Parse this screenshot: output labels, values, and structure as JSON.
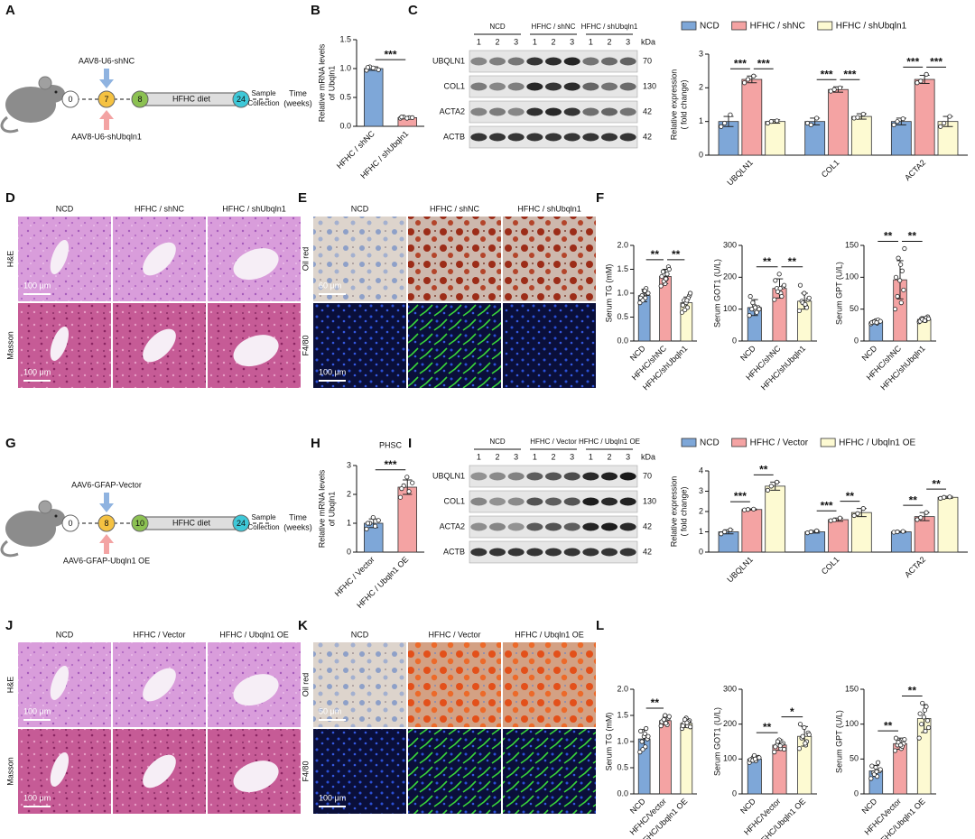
{
  "panels": [
    "A",
    "B",
    "C",
    "D",
    "E",
    "F",
    "G",
    "H",
    "I",
    "J",
    "K",
    "L"
  ],
  "diagrams": [
    {
      "top_label": "AAV8-U6-shNC",
      "bottom_label": "AAV8-U6-shUbqln1",
      "timepoints": [
        0,
        7,
        8,
        24
      ],
      "bar_label": "HFHC diet",
      "end_label": [
        "Sample",
        "Collection"
      ],
      "axis_label": [
        "Time",
        "(weeks)"
      ]
    },
    {
      "top_label": "AAV6-GFAP-Vector",
      "bottom_label": "AAV6-GFAP-Ubqln1 OE",
      "timepoints": [
        0,
        8,
        10,
        24
      ],
      "bar_label": "HFHC diet",
      "end_label": [
        "Sample",
        "Collection"
      ],
      "axis_label": [
        "Time",
        "(weeks)"
      ]
    }
  ],
  "blots": [
    {
      "groups": [
        "NCD",
        "HFHC / shNC",
        "HFHC / shUbqln1"
      ],
      "lanes": [
        "1",
        "2",
        "3"
      ],
      "unit": "kDa",
      "rows": [
        {
          "label": "UBQLN1",
          "kda": 70
        },
        {
          "label": "COL1",
          "kda": 130
        },
        {
          "label": "ACTA2",
          "kda": 42
        },
        {
          "label": "ACTB",
          "kda": 42
        }
      ]
    },
    {
      "groups": [
        "NCD",
        "HFHC / Vector",
        "HFHC / Ubqln1 OE"
      ],
      "lanes": [
        "1",
        "2",
        "3"
      ],
      "unit": "kDa",
      "rows": [
        {
          "label": "UBQLN1",
          "kda": 70
        },
        {
          "label": "COL1",
          "kda": 130
        },
        {
          "label": "ACTA2",
          "kda": 42
        },
        {
          "label": "ACTB",
          "kda": 42
        }
      ]
    }
  ],
  "images": [
    {
      "columns": [
        "NCD",
        "HFHC / shNC",
        "HFHC / shUbqln1"
      ],
      "rows": [
        "H&E",
        "Masson"
      ],
      "scale_bars": [
        "100 μm",
        "100 μm"
      ]
    },
    {
      "columns": [
        "NCD",
        "HFHC / shNC",
        "HFHC / shUbqln1"
      ],
      "rows": [
        "Oil red",
        "F4/80"
      ],
      "scale_bars": [
        "60 μm",
        "100 μm"
      ]
    },
    {
      "columns": [
        "NCD",
        "HFHC / Vector",
        "HFHC / Ubqln1 OE"
      ],
      "rows": [
        "H&E",
        "Masson"
      ],
      "scale_bars": [
        "100 μm",
        "100 μm"
      ]
    },
    {
      "columns": [
        "NCD",
        "HFHC / Vector",
        "HFHC / Ubqln1 OE"
      ],
      "rows": [
        "Oil red",
        "F4/80"
      ],
      "scale_bars": [
        "50 μm",
        "100 μm"
      ]
    }
  ],
  "chart_data": [
    {
      "type": "bar",
      "ylabel": [
        "Relative mRNA levels",
        "of Ubqln1"
      ],
      "categories": [
        "HFHC / shNC",
        "HFHC / shUbqln1"
      ],
      "colors": [
        "#7ea7d8",
        "#f4a3a3"
      ],
      "values": [
        1.0,
        0.15
      ],
      "errors": [
        0.03,
        0.01
      ],
      "points": [
        [
          0.97,
          1.0,
          1.03,
          0.98,
          1.01,
          1.02
        ],
        [
          0.14,
          0.15,
          0.16,
          0.15,
          0.14,
          0.16
        ]
      ],
      "ylim": [
        0,
        1.5
      ],
      "yticks": [
        {
          "value": 0,
          "label": "0.0"
        },
        {
          "value": 0.5,
          "label": "0.5"
        },
        {
          "value": 1,
          "label": "1.0"
        },
        {
          "value": 1.5,
          "label": "1.5"
        }
      ],
      "annotations": [
        {
          "text": "***",
          "groups": [
            "HFHC / shNC",
            "HFHC / shUbqln1"
          ]
        }
      ]
    },
    {
      "type": "bar",
      "ylabel": [
        "Relative expression",
        "( fold change)"
      ],
      "categories": [
        "UBQLN1",
        "COL1",
        "ACTA2"
      ],
      "series": [
        {
          "name": "NCD",
          "color": "#7ea7d8",
          "values": [
            1,
            1,
            1
          ],
          "errors": [
            0.15,
            0.1,
            0.1
          ],
          "points": [
            [
              0.85,
              1.2,
              0.95
            ],
            [
              0.95,
              1.1,
              0.9
            ],
            [
              0.9,
              1.08,
              1.0
            ]
          ]
        },
        {
          "name": "HFHC / shNC",
          "color": "#f4a3a3",
          "values": [
            2.25,
            1.95,
            2.25
          ],
          "errors": [
            0.1,
            0.08,
            0.12
          ],
          "points": [
            [
              2.15,
              2.35,
              2.25
            ],
            [
              1.9,
              2.0,
              1.95
            ],
            [
              2.15,
              2.4,
              2.2
            ]
          ]
        },
        {
          "name": "HFHC / shUbqln1",
          "color": "#fdfad2",
          "values": [
            1,
            1.15,
            1
          ],
          "errors": [
            0.05,
            0.08,
            0.15
          ],
          "points": [
            [
              0.95,
              1.02,
              1.0
            ],
            [
              1.1,
              1.22,
              1.12
            ],
            [
              0.85,
              1.15,
              0.95
            ]
          ]
        }
      ],
      "ylim": [
        0,
        3
      ],
      "yticks": [
        0,
        1,
        2,
        3
      ],
      "annotations": [
        {
          "text": "***",
          "category": "UBQLN1",
          "series": [
            "NCD",
            "HFHC / shNC"
          ]
        },
        {
          "text": "***",
          "category": "UBQLN1",
          "series": [
            "HFHC / shNC",
            "HFHC / shUbqln1"
          ]
        },
        {
          "text": "***",
          "category": "COL1",
          "series": [
            "NCD",
            "HFHC / shNC"
          ]
        },
        {
          "text": "***",
          "category": "COL1",
          "series": [
            "HFHC / shNC",
            "HFHC / shUbqln1"
          ]
        },
        {
          "text": "***",
          "category": "ACTA2",
          "series": [
            "NCD",
            "HFHC / shNC"
          ]
        },
        {
          "text": "***",
          "category": "ACTA2",
          "series": [
            "HFHC / shNC",
            "HFHC / shUbqln1"
          ]
        }
      ]
    },
    {
      "type": "bar",
      "ylabel": [
        "Serum TG (mM)"
      ],
      "categories": [
        "NCD",
        "HFHC/shNC",
        "HFHC/shUbqln1"
      ],
      "colors": [
        "#7ea7d8",
        "#f4a3a3",
        "#fdfad2"
      ],
      "values": [
        0.95,
        1.35,
        0.8
      ],
      "errors": [
        0.13,
        0.15,
        0.12
      ],
      "points": [
        [
          0.8,
          0.9,
          0.95,
          1.0,
          1.05,
          0.9,
          1.1,
          0.85,
          1.0,
          1.05
        ],
        [
          1.15,
          1.3,
          1.45,
          1.55,
          1.2,
          1.35,
          1.4,
          1.25,
          1.5,
          1.3
        ],
        [
          0.6,
          0.7,
          0.85,
          0.95,
          0.8,
          0.75,
          0.9,
          0.65,
          1.0,
          0.85
        ]
      ],
      "ylim": [
        0,
        2
      ],
      "yticks": [
        {
          "value": 0,
          "label": "0.0"
        },
        {
          "value": 0.5,
          "label": "0.5"
        },
        {
          "value": 1,
          "label": "1.0"
        },
        {
          "value": 1.5,
          "label": "1.5"
        },
        {
          "value": 2,
          "label": "2.0"
        }
      ],
      "annotations": [
        {
          "text": "**",
          "groups": [
            "NCD",
            "HFHC/shNC"
          ]
        },
        {
          "text": "**",
          "groups": [
            "HFHC/shNC",
            "HFHC/shUbqln1"
          ]
        }
      ]
    },
    {
      "type": "bar",
      "ylabel": [
        "Serum GOT1 (U/L)"
      ],
      "categories": [
        "NCD",
        "HFHC/shNC",
        "HFHC/shUbqln1"
      ],
      "colors": [
        "#7ea7d8",
        "#f4a3a3",
        "#fdfad2"
      ],
      "values": [
        105,
        165,
        125
      ],
      "errors": [
        25,
        30,
        25
      ],
      "points": [
        [
          80,
          95,
          100,
          105,
          110,
          140,
          90,
          120,
          100,
          105
        ],
        [
          130,
          150,
          165,
          170,
          210,
          190,
          140,
          155,
          175,
          165
        ],
        [
          95,
          110,
          125,
          130,
          150,
          175,
          105,
          120,
          135,
          115
        ]
      ],
      "ylim": [
        0,
        300
      ],
      "yticks": [
        0,
        100,
        200,
        300
      ],
      "annotations": [
        {
          "text": "**",
          "groups": [
            "NCD",
            "HFHC/shNC"
          ]
        },
        {
          "text": "**",
          "groups": [
            "HFHC/shNC",
            "HFHC/shUbqln1"
          ]
        }
      ]
    },
    {
      "type": "bar",
      "ylabel": [
        "Serum GPT (U/L)"
      ],
      "categories": [
        "NCD",
        "HFHC/shNC",
        "HFHC/shUbqln1"
      ],
      "colors": [
        "#7ea7d8",
        "#f4a3a3",
        "#fdfad2"
      ],
      "values": [
        30,
        96,
        34
      ],
      "errors": [
        3,
        30,
        4
      ],
      "points": [
        [
          27,
          28,
          30,
          31,
          32,
          29,
          33,
          30,
          31,
          29
        ],
        [
          50,
          60,
          70,
          80,
          95,
          100,
          110,
          130,
          145,
          120
        ],
        [
          30,
          32,
          35,
          38,
          33,
          31,
          36,
          34,
          35,
          32
        ]
      ],
      "ylim": [
        0,
        150
      ],
      "yticks": [
        0,
        50,
        100,
        150
      ],
      "annotations": [
        {
          "text": "**",
          "groups": [
            "NCD",
            "HFHC/shNC"
          ]
        },
        {
          "text": "**",
          "groups": [
            "HFHC/shNC",
            "HFHC/shUbqln1"
          ]
        }
      ]
    },
    {
      "type": "bar",
      "title": "PHSC",
      "ylabel": [
        "Relative mRNA levels",
        "of Ubqln1"
      ],
      "categories": [
        "HFHC / Vector",
        "HFHC / Ubqln1 OE"
      ],
      "colors": [
        "#7ea7d8",
        "#f4a3a3"
      ],
      "values": [
        1.0,
        2.25
      ],
      "errors": [
        0.15,
        0.25
      ],
      "points": [
        [
          0.8,
          0.9,
          1.0,
          1.1,
          1.2,
          1.0
        ],
        [
          1.9,
          2.1,
          2.3,
          2.4,
          2.6,
          2.2
        ]
      ],
      "ylim": [
        0,
        3
      ],
      "yticks": [
        0,
        1,
        2,
        3
      ],
      "annotations": [
        {
          "text": "***",
          "groups": [
            "HFHC / Vector",
            "HFHC / Ubqln1 OE"
          ]
        }
      ]
    },
    {
      "type": "bar",
      "ylabel": [
        "Relative expression",
        "( fold change)"
      ],
      "categories": [
        "UBQLN1",
        "COL1",
        "ACTA2"
      ],
      "series": [
        {
          "name": "NCD",
          "color": "#7ea7d8",
          "values": [
            1,
            1,
            1
          ],
          "errors": [
            0.1,
            0.06,
            0.03
          ],
          "points": [
            [
              0.9,
              1.1,
              1.0
            ],
            [
              0.95,
              1.05,
              1.0
            ],
            [
              0.98,
              1.02,
              1.0
            ]
          ]
        },
        {
          "name": "HFHC / Vector",
          "color": "#f4a3a3",
          "values": [
            2.1,
            1.6,
            1.75
          ],
          "errors": [
            0.03,
            0.08,
            0.2
          ],
          "points": [
            [
              2.08,
              2.12,
              2.1
            ],
            [
              1.55,
              1.68,
              1.58
            ],
            [
              1.6,
              1.95,
              1.7
            ]
          ]
        },
        {
          "name": "HFHC / Ubqln1 OE",
          "color": "#fdfad2",
          "values": [
            3.25,
            1.95,
            2.7
          ],
          "errors": [
            0.2,
            0.2,
            0.05
          ],
          "points": [
            [
              3.05,
              3.45,
              3.25
            ],
            [
              1.8,
              2.15,
              1.9
            ],
            [
              2.65,
              2.72,
              2.7
            ]
          ]
        }
      ],
      "ylim": [
        0,
        4
      ],
      "yticks": [
        0,
        1,
        2,
        3,
        4
      ],
      "annotations": [
        {
          "text": "***",
          "category": "UBQLN1",
          "series": [
            "NCD",
            "HFHC / Vector"
          ]
        },
        {
          "text": "**",
          "category": "UBQLN1",
          "series": [
            "HFHC / Vector",
            "HFHC / Ubqln1 OE"
          ]
        },
        {
          "text": "***",
          "category": "COL1",
          "series": [
            "NCD",
            "HFHC / Vector"
          ]
        },
        {
          "text": "**",
          "category": "COL1",
          "series": [
            "HFHC / Vector",
            "HFHC / Ubqln1 OE"
          ]
        },
        {
          "text": "**",
          "category": "ACTA2",
          "series": [
            "NCD",
            "HFHC / Vector"
          ]
        },
        {
          "text": "**",
          "category": "ACTA2",
          "series": [
            "HFHC / Vector",
            "HFHC / Ubqln1 OE"
          ]
        }
      ]
    },
    {
      "type": "bar",
      "ylabel": [
        "Serum TG (mM)"
      ],
      "categories": [
        "NCD",
        "HFHC/Vector",
        "HFHC/Ubqln1 OE"
      ],
      "colors": [
        "#7ea7d8",
        "#f4a3a3",
        "#fdfad2"
      ],
      "values": [
        1.05,
        1.4,
        1.35
      ],
      "errors": [
        0.18,
        0.08,
        0.08
      ],
      "points": [
        [
          0.8,
          0.9,
          1.0,
          1.05,
          1.1,
          1.2,
          1.25,
          0.85,
          1.1,
          1.15
        ],
        [
          1.3,
          1.35,
          1.4,
          1.45,
          1.5,
          1.38,
          1.32,
          1.42,
          1.48,
          1.35
        ],
        [
          1.25,
          1.3,
          1.35,
          1.4,
          1.45,
          1.3,
          1.38,
          1.42,
          1.28,
          1.36
        ]
      ],
      "ylim": [
        0,
        2
      ],
      "yticks": [
        {
          "value": 0,
          "label": "0.0"
        },
        {
          "value": 0.5,
          "label": "0.5"
        },
        {
          "value": 1,
          "label": "1.0"
        },
        {
          "value": 1.5,
          "label": "1.5"
        },
        {
          "value": 2,
          "label": "2.0"
        }
      ],
      "annotations": [
        {
          "text": "**",
          "groups": [
            "NCD",
            "HFHC/Vector"
          ]
        }
      ]
    },
    {
      "type": "bar",
      "ylabel": [
        "Serum GOT1 (U/L)"
      ],
      "categories": [
        "NCD",
        "HFHC/Vector",
        "HFHC/Ubqln1 OE"
      ],
      "colors": [
        "#7ea7d8",
        "#f4a3a3",
        "#fdfad2"
      ],
      "values": [
        100,
        140,
        165
      ],
      "errors": [
        8,
        15,
        28
      ],
      "points": [
        [
          90,
          95,
          100,
          105,
          110,
          98,
          102,
          96,
          104,
          100
        ],
        [
          120,
          130,
          140,
          145,
          155,
          135,
          142,
          150,
          128,
          138
        ],
        [
          130,
          140,
          160,
          175,
          190,
          200,
          150,
          165,
          170,
          145
        ]
      ],
      "ylim": [
        0,
        300
      ],
      "yticks": [
        0,
        100,
        200,
        300
      ],
      "annotations": [
        {
          "text": "**",
          "groups": [
            "NCD",
            "HFHC/Vector"
          ]
        },
        {
          "text": "*",
          "groups": [
            "HFHC/Vector",
            "HFHC/Ubqln1 OE"
          ]
        }
      ]
    },
    {
      "type": "bar",
      "ylabel": [
        "Serum GPT (U/L)"
      ],
      "categories": [
        "NCD",
        "HFHC/Vector",
        "HFHC/Ubqln1 OE"
      ],
      "colors": [
        "#7ea7d8",
        "#f4a3a3",
        "#fdfad2"
      ],
      "values": [
        33,
        72,
        108
      ],
      "errors": [
        8,
        8,
        20
      ],
      "points": [
        [
          22,
          25,
          30,
          33,
          38,
          40,
          45,
          28,
          35,
          32
        ],
        [
          62,
          65,
          70,
          72,
          75,
          80,
          68,
          74,
          78,
          70
        ],
        [
          80,
          90,
          100,
          105,
          110,
          115,
          125,
          130,
          95,
          120
        ]
      ],
      "ylim": [
        0,
        150
      ],
      "yticks": [
        0,
        50,
        100,
        150
      ],
      "annotations": [
        {
          "text": "**",
          "groups": [
            "NCD",
            "HFHC/Vector"
          ]
        },
        {
          "text": "**",
          "groups": [
            "HFHC/Vector",
            "HFHC/Ubqln1 OE"
          ]
        }
      ]
    }
  ]
}
